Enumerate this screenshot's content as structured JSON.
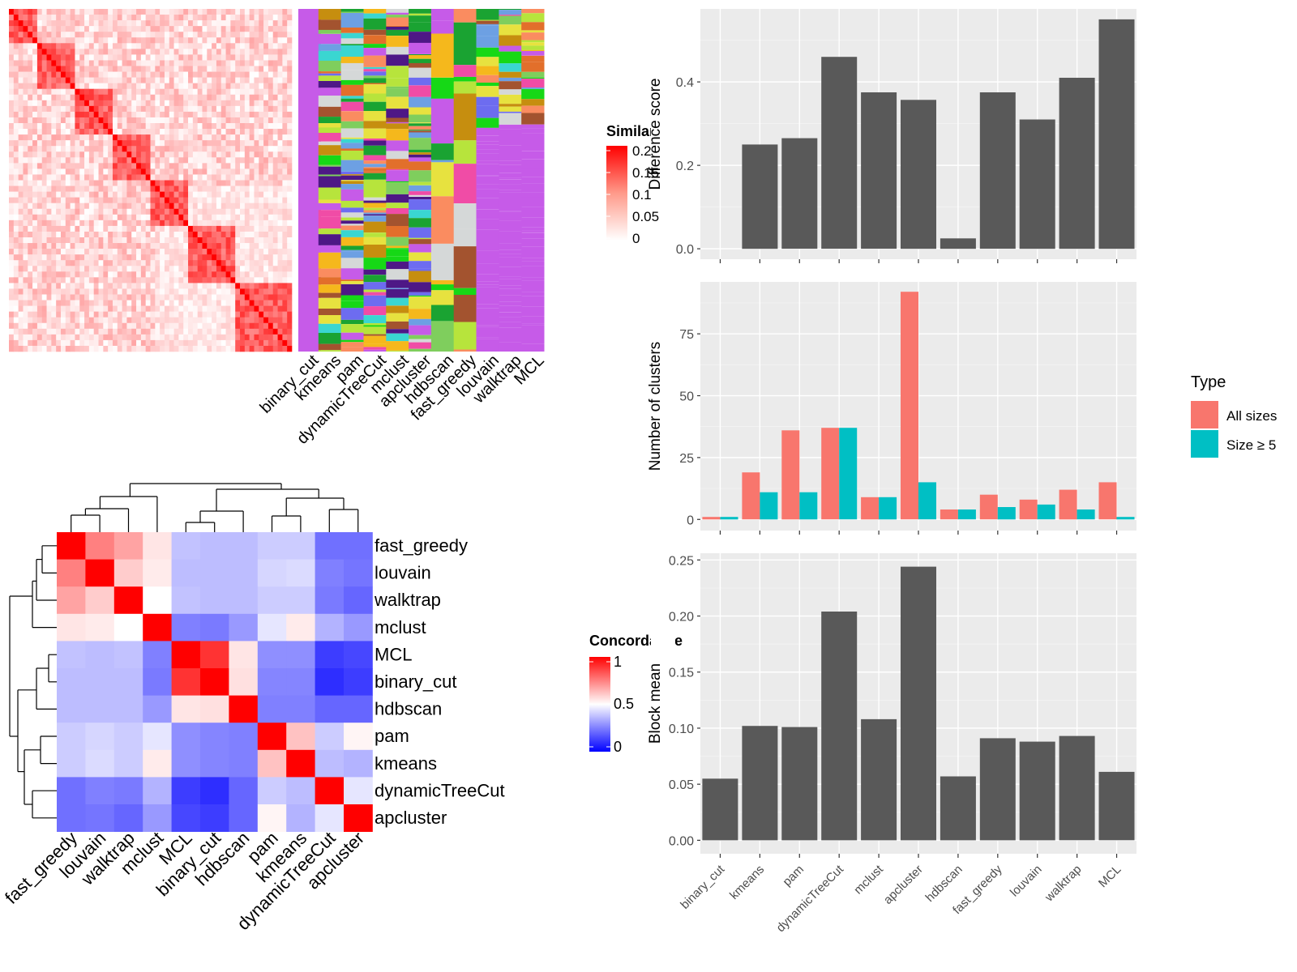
{
  "panels": {
    "similarity": {
      "legend_title": "Similarity",
      "legend_ticks": [
        "0.2",
        "0.15",
        "0.1",
        "0.05",
        "0"
      ],
      "method_columns": [
        "binary_cut",
        "kmeans",
        "pam",
        "dynamicTreeCut",
        "mclust",
        "apcluster",
        "hdbscan",
        "fast_greedy",
        "louvain",
        "walktrap",
        "MCL"
      ]
    },
    "concordance": {
      "legend_title": "Concordance",
      "legend_ticks": [
        "1",
        "0.5",
        "0"
      ]
    },
    "cluster_legend": {
      "title": "Type",
      "entries": [
        "All sizes",
        "Size ≥ 5"
      ]
    }
  },
  "colors": {
    "bar": "#595959",
    "all_sizes": "#F8766D",
    "size_ge_5": "#00BFC4",
    "panel_bg": "#EBEBEB",
    "grid": "#FFFFFF",
    "heat_high": "#FF0000",
    "heat_mid": "#FFFFFF",
    "heat_low": "#0000FF"
  },
  "chart_data": [
    {
      "type": "heatmap",
      "title": "",
      "row_labels": [
        "fast_greedy",
        "louvain",
        "walktrap",
        "mclust",
        "MCL",
        "binary_cut",
        "hdbscan",
        "pam",
        "kmeans",
        "dynamicTreeCut",
        "apcluster"
      ],
      "col_labels": [
        "fast_greedy",
        "louvain",
        "walktrap",
        "mclust",
        "MCL",
        "binary_cut",
        "hdbscan",
        "pam",
        "kmeans",
        "dynamicTreeCut",
        "apcluster"
      ],
      "values": [
        [
          1.0,
          0.75,
          0.68,
          0.55,
          0.38,
          0.37,
          0.37,
          0.4,
          0.4,
          0.22,
          0.22
        ],
        [
          0.75,
          1.0,
          0.6,
          0.54,
          0.37,
          0.37,
          0.37,
          0.42,
          0.43,
          0.25,
          0.23
        ],
        [
          0.68,
          0.6,
          1.0,
          0.5,
          0.38,
          0.37,
          0.37,
          0.4,
          0.4,
          0.24,
          0.2
        ],
        [
          0.55,
          0.54,
          0.5,
          1.0,
          0.25,
          0.24,
          0.3,
          0.45,
          0.54,
          0.35,
          0.3
        ],
        [
          0.38,
          0.37,
          0.38,
          0.25,
          1.0,
          0.9,
          0.55,
          0.28,
          0.28,
          0.12,
          0.14
        ],
        [
          0.37,
          0.37,
          0.37,
          0.24,
          0.9,
          1.0,
          0.56,
          0.26,
          0.26,
          0.09,
          0.12
        ],
        [
          0.37,
          0.37,
          0.37,
          0.3,
          0.55,
          0.56,
          1.0,
          0.25,
          0.25,
          0.2,
          0.2
        ],
        [
          0.4,
          0.42,
          0.4,
          0.45,
          0.28,
          0.26,
          0.25,
          1.0,
          0.62,
          0.4,
          0.52
        ],
        [
          0.4,
          0.43,
          0.4,
          0.54,
          0.28,
          0.26,
          0.25,
          0.62,
          1.0,
          0.37,
          0.35
        ],
        [
          0.22,
          0.25,
          0.24,
          0.35,
          0.12,
          0.09,
          0.2,
          0.4,
          0.37,
          1.0,
          0.45
        ],
        [
          0.22,
          0.23,
          0.2,
          0.3,
          0.14,
          0.12,
          0.2,
          0.52,
          0.35,
          0.45,
          1.0
        ]
      ],
      "color_scale": [
        0,
        0.5,
        1
      ]
    },
    {
      "type": "bar",
      "title": "",
      "xlabel": "",
      "ylabel": "Difference score",
      "categories": [
        "binary_cut",
        "kmeans",
        "pam",
        "dynamicTreeCut",
        "mclust",
        "apcluster",
        "hdbscan",
        "fast_greedy",
        "louvain",
        "walktrap",
        "MCL"
      ],
      "values": [
        0.0,
        0.25,
        0.265,
        0.46,
        0.375,
        0.357,
        0.025,
        0.375,
        0.31,
        0.41,
        0.55
      ],
      "ylim": [
        -0.025,
        0.575
      ],
      "yticks": [
        0.0,
        0.2,
        0.4
      ]
    },
    {
      "type": "bar",
      "title": "",
      "xlabel": "",
      "ylabel": "Number of clusters",
      "categories": [
        "binary_cut",
        "kmeans",
        "pam",
        "dynamicTreeCut",
        "mclust",
        "apcluster",
        "hdbscan",
        "fast_greedy",
        "louvain",
        "walktrap",
        "MCL"
      ],
      "series": [
        {
          "name": "All sizes",
          "values": [
            1,
            19,
            36,
            37,
            9,
            92,
            4,
            10,
            8,
            12,
            15
          ]
        },
        {
          "name": "Size ≥ 5",
          "values": [
            1,
            11,
            11,
            37,
            9,
            15,
            4,
            5,
            6,
            4,
            1
          ]
        }
      ],
      "ylim": [
        -4.5,
        96
      ],
      "yticks": [
        0,
        25,
        50,
        75
      ],
      "legend": "right"
    },
    {
      "type": "bar",
      "title": "",
      "xlabel": "",
      "ylabel": "Block mean",
      "categories": [
        "binary_cut",
        "kmeans",
        "pam",
        "dynamicTreeCut",
        "mclust",
        "apcluster",
        "hdbscan",
        "fast_greedy",
        "louvain",
        "walktrap",
        "MCL"
      ],
      "values": [
        0.055,
        0.102,
        0.101,
        0.204,
        0.108,
        0.244,
        0.057,
        0.091,
        0.088,
        0.093,
        0.061
      ],
      "ylim": [
        -0.012,
        0.256
      ],
      "yticks": [
        0.0,
        0.05,
        0.1,
        0.15,
        0.2,
        0.25
      ]
    }
  ]
}
